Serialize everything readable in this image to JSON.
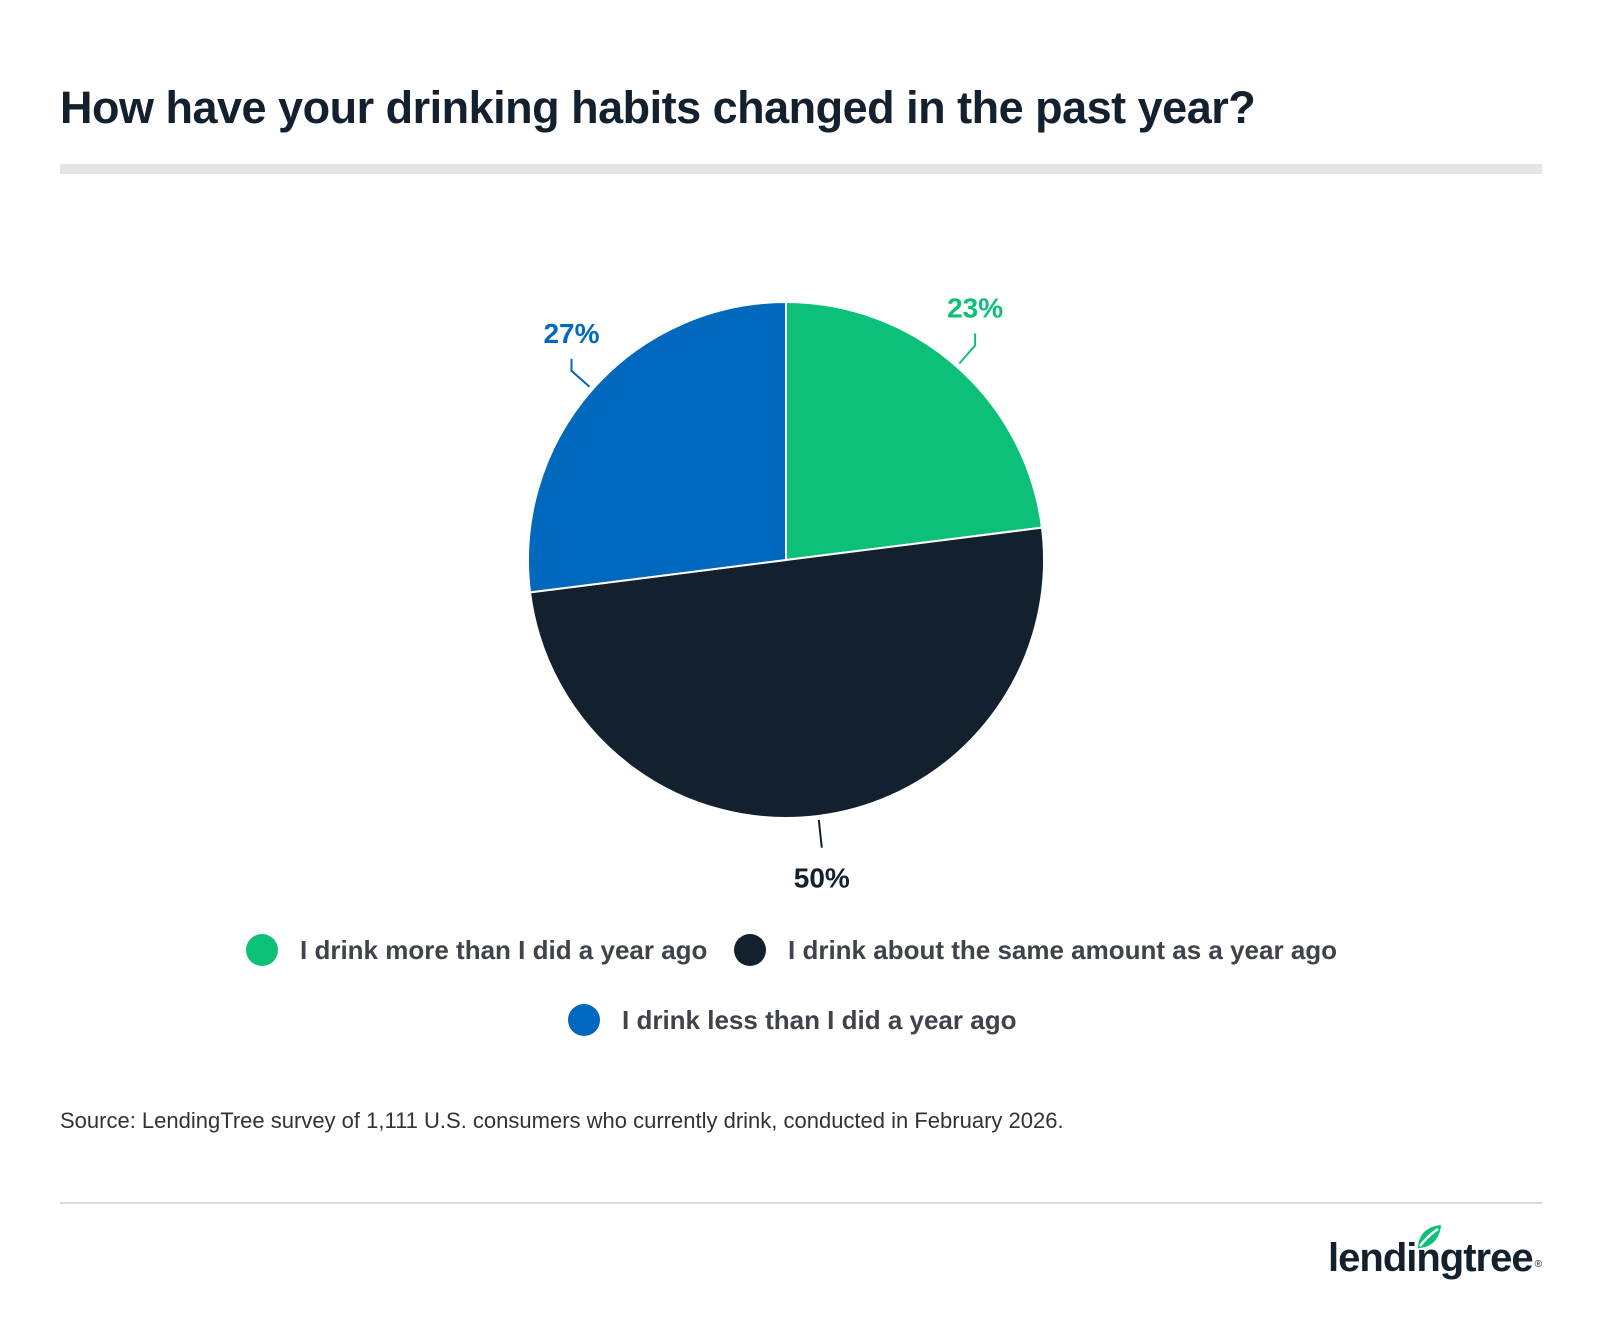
{
  "title": "How have your drinking habits changed in the past year?",
  "chart_data": {
    "type": "pie",
    "title": "How have your drinking habits changed in the past year?",
    "slices": [
      {
        "label": "I drink more than I did a year ago",
        "value": 23,
        "display": "23%",
        "color": "#0cc177"
      },
      {
        "label": "I drink about the same amount as a year ago",
        "value": 50,
        "display": "50%",
        "color": "#13202e"
      },
      {
        "label": "I drink less than I did a year ago",
        "value": 27,
        "display": "27%",
        "color": "#0068bd"
      }
    ],
    "legend_position": "bottom"
  },
  "source": "Source: LendingTree survey of 1,111 U.S. consumers who currently drink, conducted in February 2026.",
  "logo": {
    "text": "lendingtree",
    "mark": "®",
    "accent": "#0cc177"
  }
}
